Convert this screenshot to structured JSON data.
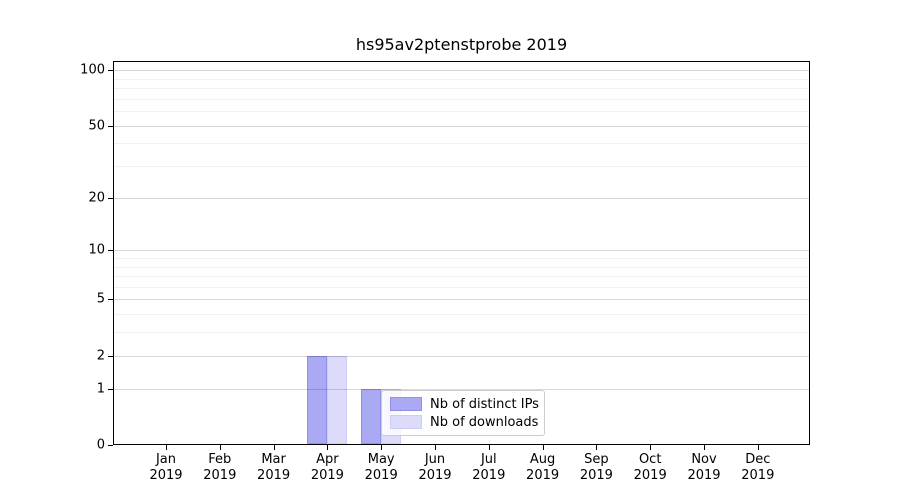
{
  "chart_data": {
    "type": "bar",
    "title": "hs95av2ptenstprobe 2019",
    "categories": [
      "Jan",
      "Feb",
      "Mar",
      "Apr",
      "May",
      "Jun",
      "Jul",
      "Aug",
      "Sep",
      "Oct",
      "Nov",
      "Dec"
    ],
    "tick_year": "2019",
    "series": [
      {
        "name": "Nb of distinct IPs",
        "color": "#a9a9f4",
        "edge": "#9191e9",
        "values": [
          0,
          0,
          0,
          2,
          1,
          0,
          0,
          0,
          0,
          0,
          0,
          0
        ]
      },
      {
        "name": "Nb of downloads",
        "color": "#dcdcfa",
        "edge": "#ccccf4",
        "values": [
          0,
          0,
          0,
          2,
          1,
          0,
          0,
          0,
          0,
          0,
          0,
          0
        ]
      }
    ],
    "xlabel": "",
    "ylabel": "",
    "y_scale": "log10(1+y)",
    "y_ticks": [
      0,
      1,
      2,
      5,
      10,
      20,
      50,
      100
    ],
    "y_minor_ticks": [
      3,
      4,
      6,
      7,
      8,
      9,
      30,
      40,
      60,
      70,
      80,
      90
    ],
    "ylim": [
      0,
      112
    ],
    "grid": "horizontal",
    "legend_position": "inside-bottom-center-left"
  }
}
